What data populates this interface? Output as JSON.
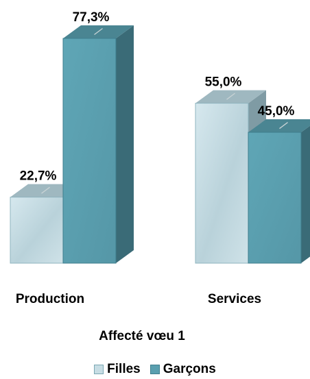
{
  "chart_data": {
    "type": "bar",
    "style": "3d-clustered-column",
    "categories": [
      "Production",
      "Services"
    ],
    "series": [
      {
        "name": "Filles",
        "values": [
          22.7,
          55.0
        ],
        "labels": [
          "22,7%",
          "55,0%"
        ],
        "color": "#c7dde4"
      },
      {
        "name": "Garçons",
        "values": [
          77.3,
          45.0
        ],
        "labels": [
          "77,3%",
          "45,0%"
        ],
        "color": "#5a9faf"
      }
    ],
    "xlabel": "Affecté vœu 1",
    "ylim": [
      0,
      100
    ],
    "grid": false,
    "legend_position": "bottom",
    "unit": "%"
  }
}
